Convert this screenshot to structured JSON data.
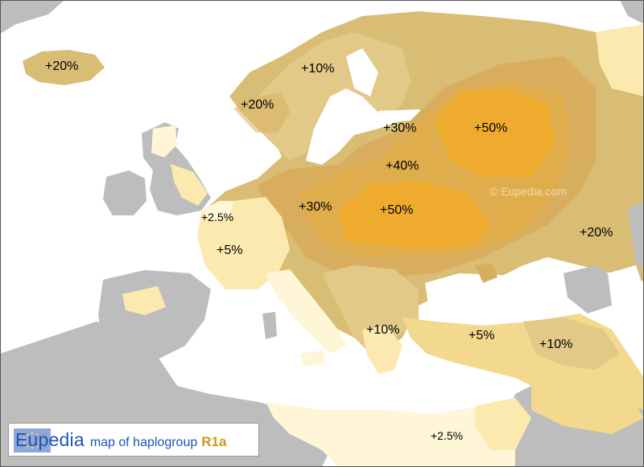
{
  "map": {
    "brand": "Eupedia",
    "caption": "map of haplogroup",
    "haplogroup": "R1a",
    "watermark": "© Eupedia.com"
  },
  "labels": [
    {
      "id": "iceland",
      "text": "+20%"
    },
    {
      "id": "scandinavia",
      "text": "+10%"
    },
    {
      "id": "norway",
      "text": "+20%"
    },
    {
      "id": "baltic",
      "text": "+30%"
    },
    {
      "id": "russia-north",
      "text": "+50%"
    },
    {
      "id": "belarus",
      "text": "+40%"
    },
    {
      "id": "germany-east",
      "text": "+30%"
    },
    {
      "id": "poland-ukraine",
      "text": "+50%"
    },
    {
      "id": "netherlands",
      "text": "+2.5%"
    },
    {
      "id": "france",
      "text": "+5%"
    },
    {
      "id": "russia-south",
      "text": "+20%"
    },
    {
      "id": "balkans",
      "text": "+10%"
    },
    {
      "id": "anatolia",
      "text": "+5%"
    },
    {
      "id": "caucasus",
      "text": "+10%"
    },
    {
      "id": "north-africa",
      "text": "+2.5%"
    }
  ],
  "colors": {
    "sea": "#ffffff",
    "land-no-data": "#bdbdbd",
    "band-0": "#fff6d8",
    "band-2_5": "#fbe9b0",
    "band-5": "#f2d98e",
    "band-10": "#e2c987",
    "band-20": "#d9bd74",
    "band-30": "#d8ae5e",
    "band-40": "#e2ad4a",
    "band-50": "#eeab2e"
  }
}
